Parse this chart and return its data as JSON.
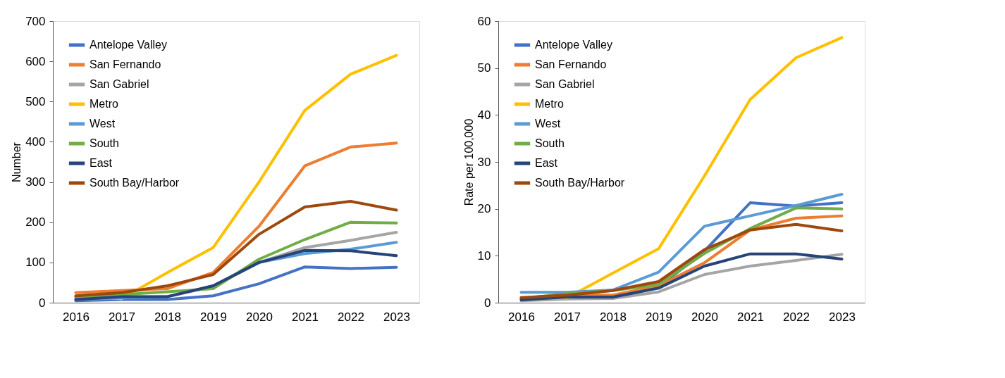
{
  "chart_data": [
    {
      "type": "line",
      "ylabel": "Number",
      "categories": [
        "2016",
        "2017",
        "2018",
        "2019",
        "2020",
        "2021",
        "2022",
        "2023"
      ],
      "ylim": [
        0,
        700
      ],
      "yticks": [
        0,
        100,
        200,
        300,
        400,
        500,
        600,
        700
      ],
      "grid": false,
      "legend": "top left",
      "marker": "none",
      "line_style": "solid",
      "series": [
        {
          "name": "Antelope Valley",
          "color": "#4472c4",
          "values": [
            5,
            8,
            8,
            17,
            47,
            89,
            85,
            88
          ]
        },
        {
          "name": "San Fernando",
          "color": "#ed7d31",
          "values": [
            25,
            30,
            35,
            75,
            190,
            340,
            387,
            397
          ]
        },
        {
          "name": "San Gabriel",
          "color": "#a5a5a5",
          "values": [
            10,
            15,
            15,
            40,
            100,
            137,
            155,
            175
          ]
        },
        {
          "name": "Metro",
          "color": "#ffc000",
          "values": [
            15,
            10,
            75,
            137,
            300,
            478,
            568,
            615
          ]
        },
        {
          "name": "West",
          "color": "#5b9bd5",
          "values": [
            8,
            12,
            15,
            42,
            100,
            122,
            133,
            150
          ]
        },
        {
          "name": "South",
          "color": "#70ad47",
          "values": [
            15,
            20,
            27,
            35,
            108,
            157,
            200,
            198
          ]
        },
        {
          "name": "East",
          "color": "#264478",
          "values": [
            8,
            15,
            15,
            42,
            100,
            130,
            129,
            117
          ]
        },
        {
          "name": "South Bay/Harbor",
          "color": "#9e480e",
          "values": [
            17,
            25,
            42,
            70,
            170,
            238,
            252,
            230
          ]
        }
      ]
    },
    {
      "type": "line",
      "ylabel": "Rate per 100,000",
      "categories": [
        "2016",
        "2017",
        "2018",
        "2019",
        "2020",
        "2021",
        "2022",
        "2023"
      ],
      "ylim": [
        0,
        60
      ],
      "yticks": [
        0,
        10,
        20,
        30,
        40,
        50,
        60
      ],
      "grid": false,
      "legend": "top left",
      "marker": "none",
      "line_style": "solid",
      "series": [
        {
          "name": "Antelope Valley",
          "color": "#4472c4",
          "values": [
            null,
            null,
            1.2,
            3.3,
            11.0,
            21.3,
            20.6,
            21.3
          ]
        },
        {
          "name": "San Fernando",
          "color": "#ed7d31",
          "values": [
            0.8,
            1.6,
            1.6,
            3.6,
            8.5,
            15.5,
            18.0,
            18.5
          ]
        },
        {
          "name": "San Gabriel",
          "color": "#a5a5a5",
          "values": [
            0.4,
            0.8,
            0.9,
            2.3,
            6.0,
            7.8,
            9.0,
            10.3
          ]
        },
        {
          "name": "Metro",
          "color": "#ffc000",
          "values": [
            1.0,
            1.0,
            6.3,
            11.5,
            27.0,
            43.3,
            52.2,
            56.5
          ]
        },
        {
          "name": "West",
          "color": "#5b9bd5",
          "values": [
            2.2,
            2.2,
            2.7,
            6.5,
            16.3,
            18.5,
            20.7,
            23.1
          ]
        },
        {
          "name": "South",
          "color": "#70ad47",
          "values": [
            0.9,
            1.9,
            2.6,
            3.9,
            10.5,
            15.8,
            20.2,
            20.0
          ]
        },
        {
          "name": "East",
          "color": "#264478",
          "values": [
            0.6,
            1.2,
            1.2,
            3.1,
            7.8,
            10.4,
            10.4,
            9.3
          ]
        },
        {
          "name": "South Bay/Harbor",
          "color": "#9e480e",
          "values": [
            1.1,
            1.6,
            2.6,
            4.5,
            11.3,
            15.5,
            16.7,
            15.3
          ]
        }
      ]
    }
  ]
}
